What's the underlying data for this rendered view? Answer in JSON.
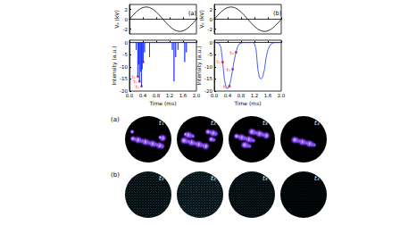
{
  "chart_data": [
    {
      "type": "line",
      "title": "(a)",
      "y_label": "Vₐ (kV)",
      "x": [
        0,
        0.1,
        0.2,
        0.3,
        0.4,
        0.5,
        0.6,
        0.7,
        0.8,
        0.9,
        1.0,
        1.1,
        1.2,
        1.3,
        1.4,
        1.5,
        1.6,
        1.7,
        1.8,
        1.9,
        2.0
      ],
      "values": [
        0,
        0.77,
        1.47,
        2.02,
        2.38,
        2.5,
        2.38,
        2.02,
        1.47,
        0.77,
        0,
        -0.77,
        -1.47,
        -2.02,
        -2.38,
        -2.5,
        -2.38,
        -2.02,
        -1.47,
        -0.77,
        0
      ],
      "color": "#000000",
      "line_style": "solid",
      "xlim": [
        0,
        2
      ],
      "xticks": [
        {
          "value": 0,
          "label": "0.0"
        },
        0.4,
        0.8,
        1.2,
        1.6,
        {
          "value": 2,
          "label": "2.0"
        }
      ],
      "ylim": [
        -3,
        3
      ],
      "yticks": [
        -2,
        0,
        2
      ],
      "tick_labels": "y"
    },
    {
      "type": "line",
      "x_label": "Time (ms)",
      "y_label": "Intensity (a.u.)",
      "x": [
        0,
        0.2,
        0.2,
        0.2,
        0.25,
        0.25,
        0.25,
        0.28,
        0.28,
        0.28,
        0.3,
        0.3,
        0.3,
        0.33,
        0.33,
        0.33,
        0.36,
        0.36,
        0.36,
        0.38,
        0.38,
        0.38,
        0.41,
        0.41,
        0.41,
        0.45,
        0.45,
        0.45,
        0.6,
        0.6,
        0.6,
        1.28,
        1.28,
        1.28,
        1.33,
        1.33,
        1.33,
        1.38,
        1.38,
        1.38,
        1.45,
        1.45,
        1.45,
        1.65,
        1.65,
        1.65,
        1.7,
        1.7,
        1.7,
        2.0
      ],
      "values": [
        0,
        0,
        -3,
        0,
        0,
        -14,
        0,
        0,
        -9,
        0,
        0,
        -16,
        0,
        0,
        -12,
        0,
        0,
        -18,
        0,
        0,
        -11,
        0,
        0,
        -8,
        0,
        0,
        -4,
        0,
        0,
        -6,
        0,
        0,
        -3,
        0,
        0,
        -16,
        0,
        0,
        -6,
        0,
        0,
        -3,
        0,
        0,
        -8,
        0,
        0,
        -4,
        0,
        0
      ],
      "color": "#2233ff",
      "line_style": "solid",
      "annotations": [
        {
          "x": 0.25,
          "y": -14,
          "label": "t₁",
          "color": "#ff0000"
        },
        {
          "x": 0.3,
          "y": -16,
          "label": "t₂",
          "color": "#ff0000"
        },
        {
          "x": 0.36,
          "y": -18,
          "label": "t₃",
          "color": "#ff0000"
        },
        {
          "x": 0.41,
          "y": -8,
          "label": "t₄",
          "color": "#ff0000"
        }
      ],
      "xlim": [
        0,
        2
      ],
      "xticks": [
        {
          "value": 0,
          "label": "0.0"
        },
        0.4,
        0.8,
        1.2,
        1.6,
        {
          "value": 2,
          "label": "2.0"
        }
      ],
      "ylim": [
        -20,
        1
      ],
      "yticks": [
        -20,
        -15,
        -10,
        -5,
        0
      ]
    },
    {
      "type": "line",
      "title": "(b)",
      "y_label": "Vₐ (kV)",
      "x": [
        0,
        0.1,
        0.2,
        0.3,
        0.4,
        0.5,
        0.6,
        0.7,
        0.8,
        0.9,
        1.0,
        1.1,
        1.2,
        1.3,
        1.4,
        1.5,
        1.6,
        1.7,
        1.8,
        1.9,
        2.0
      ],
      "values": [
        0,
        0.77,
        1.47,
        2.02,
        2.38,
        2.5,
        2.38,
        2.02,
        1.47,
        0.77,
        0,
        -0.77,
        -1.47,
        -2.02,
        -2.38,
        -2.5,
        -2.38,
        -2.02,
        -1.47,
        -0.77,
        0
      ],
      "color": "#000000",
      "line_style": "solid",
      "xlim": [
        0,
        2
      ],
      "xticks": [
        {
          "value": 0,
          "label": "0.0"
        },
        0.4,
        0.8,
        1.2,
        1.6,
        {
          "value": 2,
          "label": "2.0"
        }
      ],
      "ylim": [
        -3,
        3
      ],
      "yticks": [
        -2,
        0,
        2
      ],
      "tick_labels": "y"
    },
    {
      "type": "line",
      "x_label": "Time (ms)",
      "y_label": "Intensity (a.u.)",
      "x": [
        0,
        0.05,
        0.1,
        0.15,
        0.2,
        0.25,
        0.3,
        0.35,
        0.4,
        0.45,
        0.5,
        0.55,
        0.6,
        0.65,
        0.7,
        0.75,
        0.8,
        0.85,
        0.9,
        0.95,
        1.0,
        1.05,
        1.1,
        1.15,
        1.2,
        1.25,
        1.3,
        1.35,
        1.4,
        1.45,
        1.5,
        1.55,
        1.6,
        1.65,
        1.7,
        1.75,
        1.8,
        1.85,
        1.9,
        1.95,
        2.0
      ],
      "values": [
        0,
        0,
        -0.2,
        -0.5,
        -2,
        -8,
        -15,
        -18.5,
        -19,
        -18,
        -15,
        -11,
        -7,
        -4,
        -1.5,
        -0.5,
        -0.2,
        0,
        0,
        0,
        0,
        0,
        0,
        0,
        -0.3,
        -3,
        -11,
        -14.5,
        -15,
        -14,
        -11,
        -6,
        -3,
        -1.5,
        -0.5,
        -0.2,
        0,
        0,
        0,
        0,
        0
      ],
      "color": "#2233ff",
      "line_style": "solid",
      "annotations": [
        {
          "x": 0.25,
          "y": -8,
          "label": "t₁",
          "color": "#ff0000"
        },
        {
          "x": 0.45,
          "y": -18,
          "label": "t₂",
          "color": "#ff0000"
        },
        {
          "x": 0.55,
          "y": -11,
          "label": "t₃",
          "color": "#ff0000"
        },
        {
          "x": 0.65,
          "y": -4,
          "label": "t₄",
          "color": "#ff0000"
        }
      ],
      "xlim": [
        0,
        2
      ],
      "xticks": [
        {
          "value": 0,
          "label": "0.0"
        },
        0.4,
        0.8,
        1.2,
        1.6,
        {
          "value": 2,
          "label": "2.0"
        }
      ],
      "ylim": [
        -20,
        1
      ],
      "yticks": [
        -20,
        -15,
        -10,
        -5,
        0
      ]
    }
  ],
  "images": {
    "rows": [
      {
        "label": "(a)",
        "frames": [
          "t₁",
          "t₂",
          "t₃",
          "t₄"
        ]
      },
      {
        "label": "(b)",
        "frames": [
          "t₁",
          "t₂",
          "t₃",
          "t₄"
        ]
      }
    ]
  }
}
